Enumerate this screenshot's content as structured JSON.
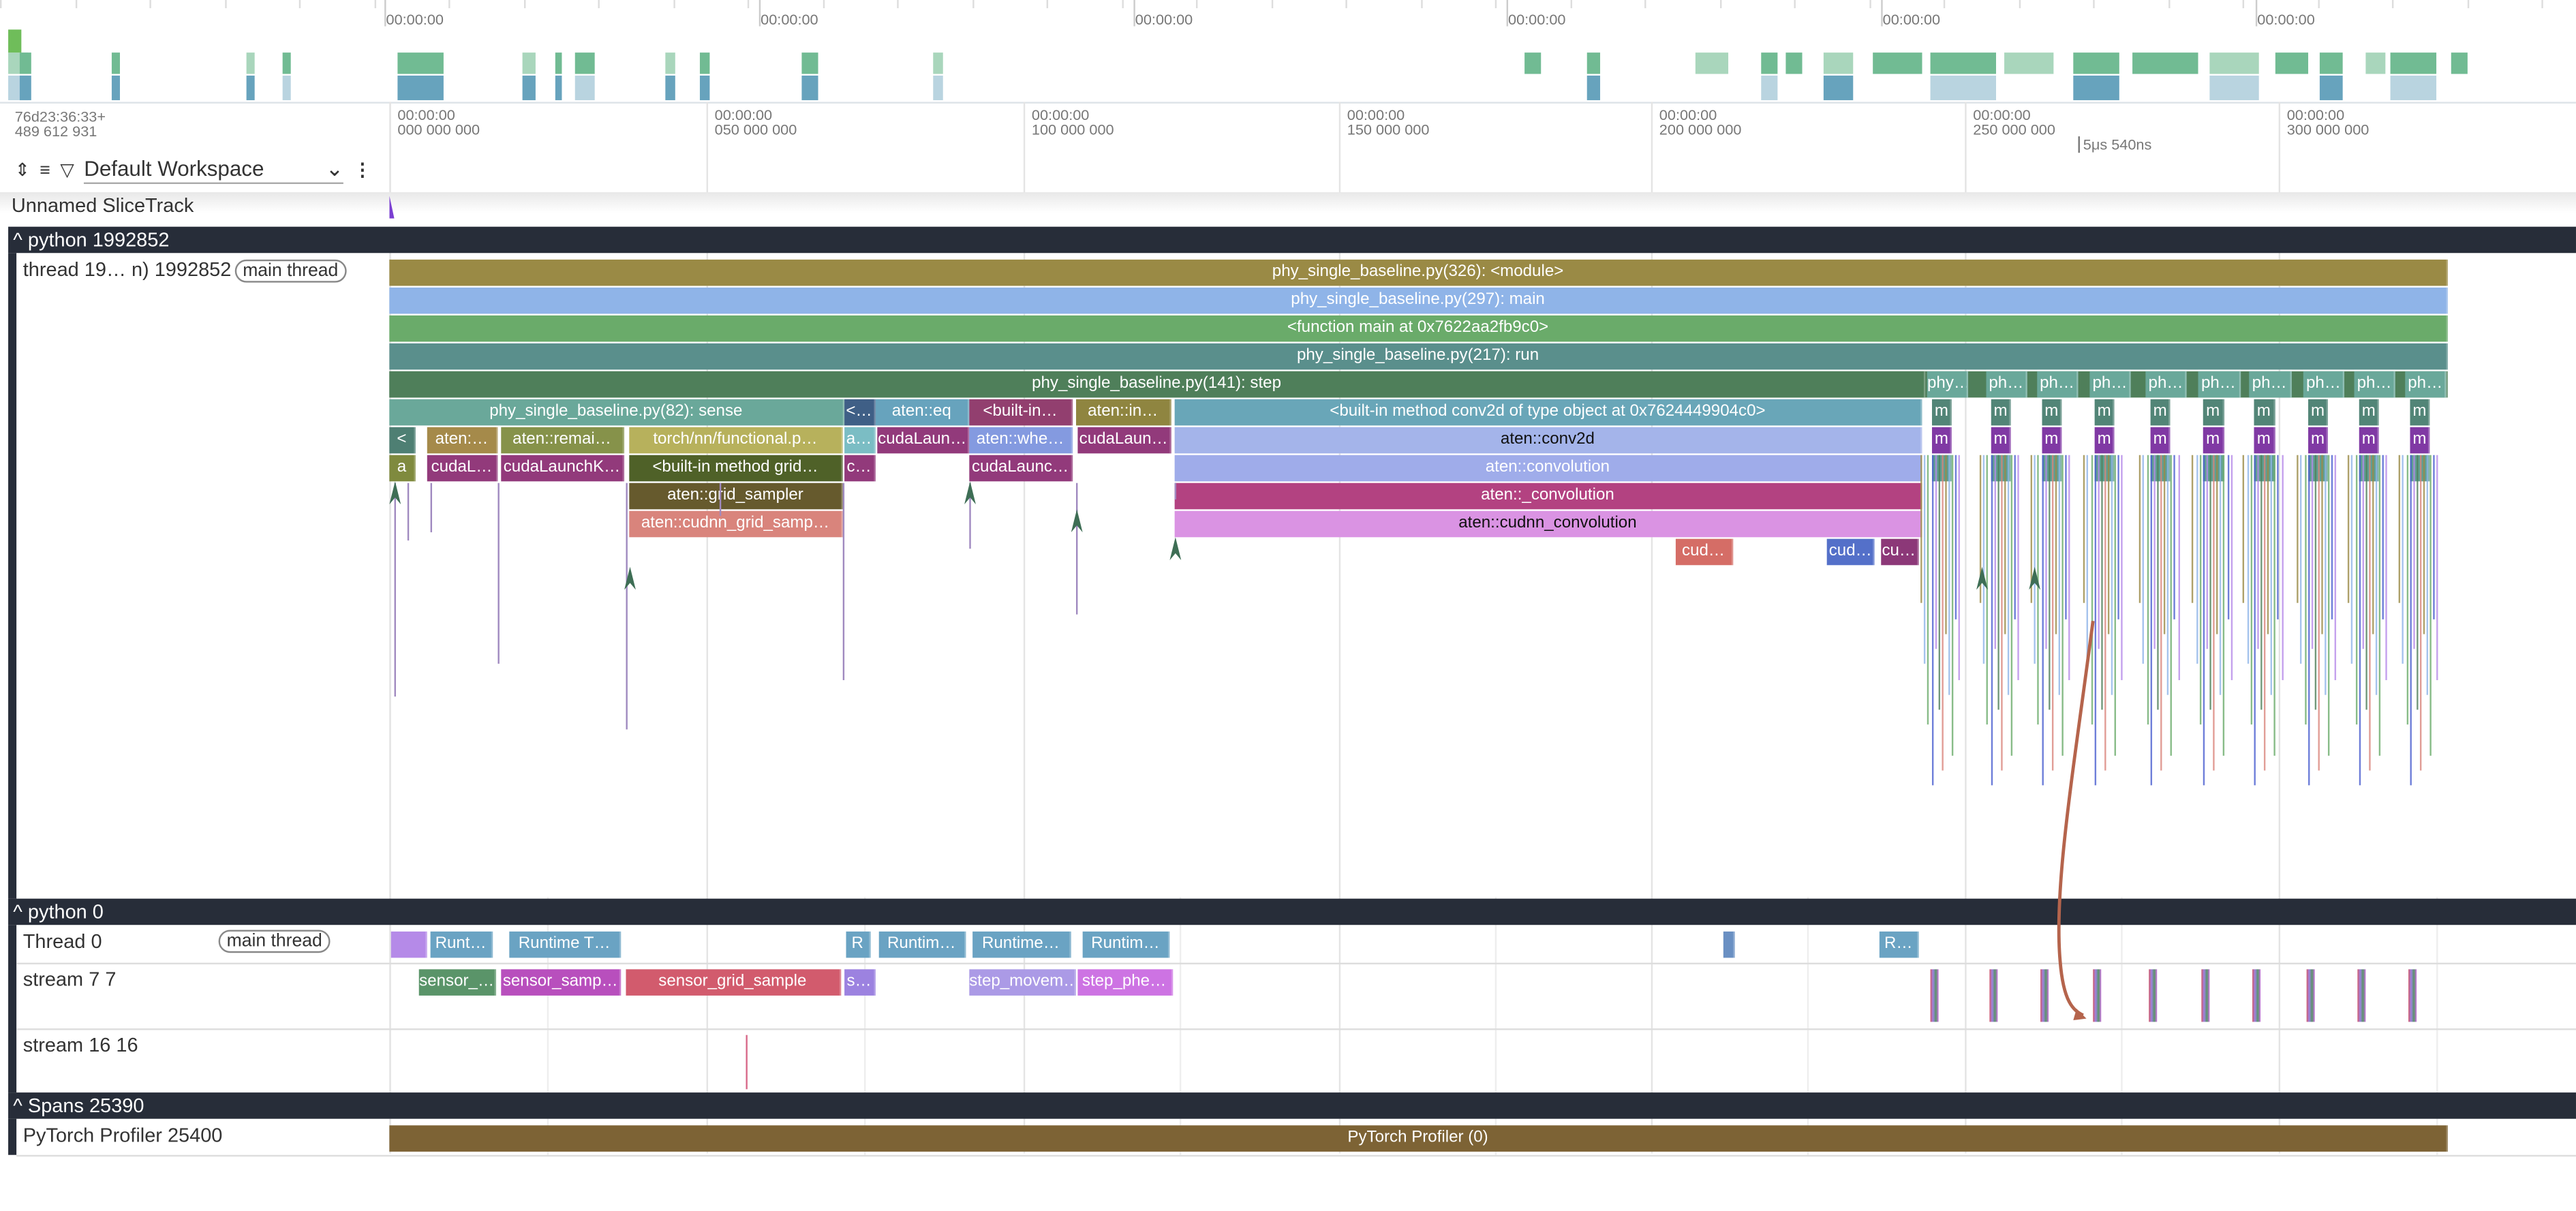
{
  "overview": {
    "time_labels": [
      "00:00:00",
      "00:00:00",
      "00:00:00",
      "00:00:00",
      "00:00:00",
      "00:00:00"
    ]
  },
  "header": {
    "origin_time": "76d23:36:33+",
    "origin_ns": "489 612 931",
    "ticks": [
      {
        "t": "00:00:00",
        "v": "000 000 000"
      },
      {
        "t": "00:00:00",
        "v": "050 000 000"
      },
      {
        "t": "00:00:00",
        "v": "100 000 000"
      },
      {
        "t": "00:00:00",
        "v": "150 000 000"
      },
      {
        "t": "00:00:00",
        "v": "200 000 000"
      },
      {
        "t": "00:00:00",
        "v": "250 000 000"
      },
      {
        "t": "00:00:00",
        "v": "300 000 000"
      }
    ],
    "scale_label": "5μs 540ns",
    "workspace": "Default Workspace"
  },
  "tracks": {
    "unnamed": "Unnamed SliceTrack",
    "group1": "python 1992852",
    "main_thread_name": "thread 19… n) 1992852",
    "main_thread_badge": "main thread",
    "group2": "python 0",
    "thread0": "Thread 0",
    "thread0_badge": "main thread",
    "stream7": "stream 7 7",
    "stream16": "stream 16 16",
    "group3": "Spans 25390",
    "profiler": "PyTorch Profiler 25400"
  },
  "main_slices": [
    {
      "d": 0,
      "s": 0,
      "e": 327.7,
      "name": "phy_single_baseline.py(326): <module>",
      "color": "#9a8a45"
    },
    {
      "d": 1,
      "s": 0,
      "e": 327.7,
      "name": "phy_single_baseline.py(297): main",
      "color": "#8fb4e8"
    },
    {
      "d": 2,
      "s": 0,
      "e": 327.7,
      "name": "<function main at 0x7622aa2fb9c0>",
      "color": "#6aab6a"
    },
    {
      "d": 3,
      "s": 0,
      "e": 327.7,
      "name": "phy_single_baseline.py(217): run",
      "color": "#5a8f8c"
    },
    {
      "d": 4,
      "s": 0,
      "e": 327.7,
      "name": "",
      "color": "#4f7f5a"
    },
    {
      "d": 4,
      "s": 0,
      "e": 244.5,
      "name": "phy_single_baseline.py(141): step",
      "color": "#4f7f5a"
    },
    {
      "d": 5,
      "s": 0,
      "e": 72.4,
      "name": "phy_single_baseline.py(82): sense",
      "color": "#6aa89a"
    },
    {
      "d": 5,
      "s": 72.4,
      "e": 77.4,
      "name": "<…",
      "color": "#3f5f86"
    },
    {
      "d": 5,
      "s": 77.4,
      "e": 92.3,
      "name": "aten::eq",
      "color": "#67a3bd"
    },
    {
      "d": 5,
      "s": 92.3,
      "e": 108.8,
      "name": "<built-in…",
      "color": "#923f6f"
    },
    {
      "d": 5,
      "s": 109.3,
      "e": 124.5,
      "name": "aten::in…",
      "color": "#8f8540"
    },
    {
      "d": 5,
      "s": 125,
      "e": 244,
      "name": "<built-in method conv2d of type object at 0x7624449904c0>",
      "color": "#69a6b8"
    },
    {
      "d": 6,
      "s": 0,
      "e": 4.2,
      "name": "<",
      "color": "#4e7f73"
    },
    {
      "d": 6,
      "s": 6,
      "e": 17.3,
      "name": "aten:…",
      "color": "#a58a4a"
    },
    {
      "d": 6,
      "s": 17.8,
      "e": 37.4,
      "name": "aten::remai…",
      "color": "#86924a"
    },
    {
      "d": 6,
      "s": 38.2,
      "e": 72.2,
      "name": "torch/nn/functional.p…",
      "color": "#b7b15c"
    },
    {
      "d": 6,
      "s": 72.4,
      "e": 77.4,
      "name": "a…",
      "color": "#7bbdc4"
    },
    {
      "d": 6,
      "s": 77.6,
      "e": 92.3,
      "name": "cudaLaun…",
      "color": "#923a7b"
    },
    {
      "d": 6,
      "s": 92.3,
      "e": 108.8,
      "name": "aten::whe…",
      "color": "#849ae0"
    },
    {
      "d": 6,
      "s": 109.5,
      "e": 124.5,
      "name": "cudaLaun…",
      "color": "#923a7b"
    },
    {
      "d": 6,
      "s": 125,
      "e": 244,
      "name": "aten::conv2d",
      "color": "#a4b4ea",
      "dark": true
    },
    {
      "d": 7,
      "s": 0,
      "e": 4.2,
      "name": "a",
      "color": "#7f8a3e"
    },
    {
      "d": 7,
      "s": 6,
      "e": 17.3,
      "name": "cudaL…",
      "color": "#923a7b"
    },
    {
      "d": 7,
      "s": 17.8,
      "e": 37.4,
      "name": "cudaLaunchK…",
      "color": "#923a7b"
    },
    {
      "d": 7,
      "s": 38.2,
      "e": 72.2,
      "name": "<built-in method grid…",
      "color": "#4f6128"
    },
    {
      "d": 7,
      "s": 72.4,
      "e": 77.4,
      "name": "c…",
      "color": "#923a7b"
    },
    {
      "d": 7,
      "s": 92.3,
      "e": 108.8,
      "name": "cudaLaunc…",
      "color": "#923a7b"
    },
    {
      "d": 7,
      "s": 125,
      "e": 244,
      "name": "aten::convolution",
      "color": "#9facea"
    },
    {
      "d": 8,
      "s": 38.2,
      "e": 72.2,
      "name": "aten::grid_sampler",
      "color": "#665a2d"
    },
    {
      "d": 8,
      "s": 125,
      "e": 244,
      "name": "aten::_convolution",
      "color": "#b34281"
    },
    {
      "d": 9,
      "s": 38.2,
      "e": 72.2,
      "name": "aten::cudnn_grid_samp…",
      "color": "#d9847c"
    },
    {
      "d": 9,
      "s": 125,
      "e": 244,
      "name": "aten::cudnn_convolution",
      "color": "#da93e3",
      "dark": true
    },
    {
      "d": 10,
      "s": 204.7,
      "e": 213.9,
      "name": "cud…",
      "color": "#d56d66"
    },
    {
      "d": 10,
      "s": 228.9,
      "e": 236.5,
      "name": "cud…",
      "color": "#5470c9"
    },
    {
      "d": 10,
      "s": 237.4,
      "e": 243.4,
      "name": "cu…",
      "color": "#8c3878"
    }
  ],
  "repeat_steps": {
    "first_label": "phy…",
    "label": "ph…",
    "sub_label": "m",
    "starts": [
      244.8,
      254.2,
      262.3,
      270.7,
      279.6,
      288,
      296.1,
      304.7,
      312.8,
      320.9
    ],
    "colors": {
      "outer": "#6aa89a",
      "inner1": "#528577",
      "inner2": "#8039a4"
    }
  },
  "thread0_slices": [
    {
      "s": 0.3,
      "e": 6,
      "name": "",
      "color": "#b58ae8"
    },
    {
      "s": 6.5,
      "e": 16.5,
      "name": "Runt…",
      "color": "#6aa3c3"
    },
    {
      "s": 19,
      "e": 37,
      "name": "Runtime T…",
      "color": "#6aa3c3"
    },
    {
      "s": 72.7,
      "e": 76.6,
      "name": "R",
      "color": "#6aa3c3"
    },
    {
      "s": 77.9,
      "e": 91.8,
      "name": "Runtim…",
      "color": "#6aa3c3"
    },
    {
      "s": 92.8,
      "e": 108.5,
      "name": "Runtime…",
      "color": "#6aa3c3"
    },
    {
      "s": 110.4,
      "e": 124.2,
      "name": "Runtim…",
      "color": "#6aa3c3"
    },
    {
      "s": 212.3,
      "e": 214.1,
      "name": "",
      "color": "#6a90c3"
    },
    {
      "s": 237.2,
      "e": 243.5,
      "name": "R…",
      "color": "#6aa3c3"
    }
  ],
  "stream7_slices": [
    {
      "s": 4.7,
      "e": 17,
      "name": "sensor_…",
      "color": "#5a9469"
    },
    {
      "s": 17.8,
      "e": 36.9,
      "name": "sensor_samp…",
      "color": "#b84fbd"
    },
    {
      "s": 37.6,
      "e": 71.9,
      "name": "sensor_grid_sample",
      "color": "#d25b6d"
    },
    {
      "s": 72.4,
      "e": 77.4,
      "name": "s…",
      "color": "#9c82e0"
    },
    {
      "s": 92.3,
      "e": 109.3,
      "name": "step_movem…",
      "color": "#ab9ae6"
    },
    {
      "s": 109.5,
      "e": 124.7,
      "name": "step_phe…",
      "color": "#cd73e3"
    }
  ],
  "profiler_slice": {
    "s": 0,
    "e": 327.7,
    "name": "PyTorch Profiler (0)",
    "color": "#7d6335"
  },
  "colors": {
    "header_bg": "#272d39",
    "flow_arrow": "#b5644c"
  }
}
